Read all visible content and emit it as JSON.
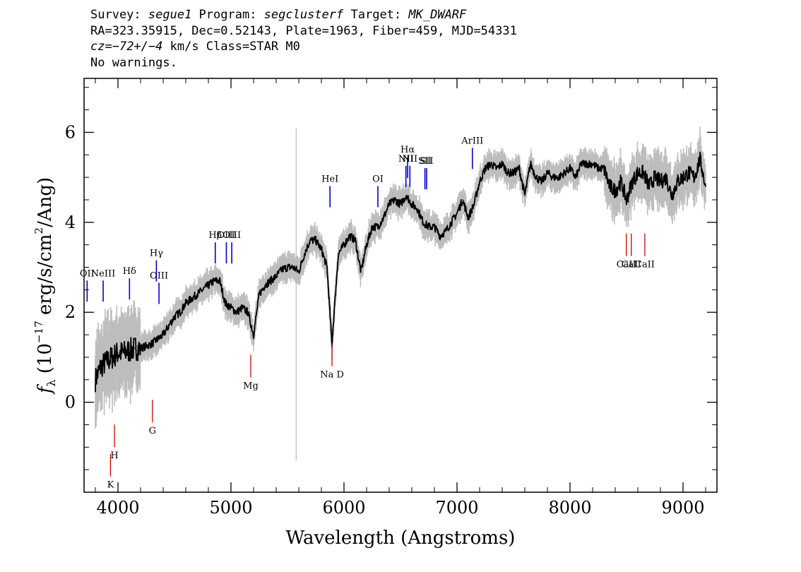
{
  "header": {
    "line1": {
      "survey_label": "Survey: ",
      "survey": "segue1",
      "program_label": " Program: ",
      "program": "segclusterf",
      "target_label": " Target: ",
      "target": "MK_DWARF"
    },
    "line2": "RA=323.35915, Dec=0.52143, Plate=1963, Fiber=459, MJD=54331",
    "line3": {
      "cz_label": "cz",
      "cz_value": "=−72+/−4",
      "cz_rest": " km/s Class=STAR M0"
    },
    "line4": "No warnings."
  },
  "chart_data": {
    "type": "line",
    "xlabel": "Wavelength (Angstroms)",
    "ylabel": "f_λ (10^-17 erg/s/cm^2/Ang)",
    "xlim": [
      3700,
      9300
    ],
    "ylim": [
      -2.0,
      7.2
    ],
    "x_ticks": [
      4000,
      5000,
      6000,
      7000,
      8000,
      9000
    ],
    "y_ticks": [
      0,
      2,
      4,
      6
    ],
    "colors": {
      "flux": "#000000",
      "error_band": "#bdbdbd",
      "emission_lines": "#0000cc",
      "absorption_lines": "#cc0000"
    },
    "series": [
      {
        "x": [
          3800,
          3850,
          3900,
          3950,
          4000,
          4050,
          4100,
          4150,
          4200,
          4250,
          4300,
          4350,
          4400,
          4450,
          4500,
          4550,
          4600,
          4650,
          4700,
          4750,
          4800,
          4850,
          4900,
          4950,
          5000,
          5050,
          5100,
          5150,
          5200,
          5250,
          5300,
          5350,
          5400,
          5450,
          5500,
          5550,
          5600,
          5650,
          5700,
          5750,
          5800,
          5850,
          5893,
          5950,
          6000,
          6050,
          6100,
          6150,
          6200,
          6250,
          6300,
          6350,
          6400,
          6450,
          6500,
          6550,
          6600,
          6650,
          6700,
          6750,
          6800,
          6850,
          6900,
          6950,
          7000,
          7050,
          7100,
          7150,
          7200,
          7250,
          7300,
          7350,
          7400,
          7450,
          7500,
          7550,
          7600,
          7650,
          7700,
          7750,
          7800,
          7850,
          7900,
          7950,
          8000,
          8050,
          8100,
          8150,
          8200,
          8250,
          8300,
          8350,
          8400,
          8450,
          8500,
          8550,
          8600,
          8650,
          8700,
          8750,
          8800,
          8850,
          8900,
          8950,
          9000,
          9050,
          9100,
          9150,
          9200
        ],
        "y": [
          0.5,
          0.8,
          0.9,
          1.0,
          1.1,
          1.1,
          1.15,
          1.2,
          1.2,
          1.25,
          1.3,
          1.4,
          1.5,
          1.7,
          1.9,
          2.0,
          2.2,
          2.3,
          2.4,
          2.5,
          2.6,
          2.7,
          2.7,
          2.2,
          2.1,
          2.0,
          2.1,
          2.0,
          1.5,
          2.4,
          2.6,
          2.7,
          2.8,
          2.95,
          3.0,
          3.0,
          2.9,
          3.3,
          3.6,
          3.6,
          3.4,
          3.0,
          1.3,
          3.3,
          3.5,
          3.7,
          3.6,
          2.9,
          3.5,
          3.9,
          3.9,
          4.1,
          4.4,
          4.5,
          4.4,
          4.6,
          4.4,
          4.3,
          4.0,
          3.9,
          3.9,
          3.7,
          3.8,
          4.0,
          4.2,
          4.5,
          4.1,
          4.4,
          4.9,
          5.2,
          5.3,
          5.2,
          5.3,
          5.1,
          5.1,
          5.2,
          4.6,
          5.3,
          5.0,
          4.9,
          5.1,
          5.0,
          5.0,
          5.1,
          5.2,
          5.0,
          5.3,
          5.3,
          5.3,
          5.2,
          5.2,
          4.8,
          4.7,
          4.9,
          4.5,
          4.9,
          5.1,
          5.1,
          4.8,
          5.0,
          4.9,
          5.0,
          4.6,
          4.9,
          5.0,
          5.1,
          5.0,
          5.4,
          4.8
        ]
      }
    ],
    "lines": [
      {
        "label": "OII",
        "wavelength": 3727,
        "type": "emission",
        "label_y": 2.8
      },
      {
        "label": "NeIII",
        "wavelength": 3869,
        "type": "emission",
        "label_y": 2.8
      },
      {
        "label": "Hδ",
        "wavelength": 4102,
        "type": "emission",
        "label_y": 2.85
      },
      {
        "label": "Hγ",
        "wavelength": 4340,
        "type": "emission",
        "label_y": 3.25
      },
      {
        "label": "OIII",
        "wavelength": 4363,
        "type": "emission",
        "label_y": 2.75
      },
      {
        "label": "Hβ",
        "wavelength": 4861,
        "type": "emission",
        "label_y": 3.65
      },
      {
        "label": "OIII",
        "wavelength": 4959,
        "type": "emission",
        "label_y": 3.65
      },
      {
        "label": "OIII",
        "wavelength": 5007,
        "type": "emission",
        "label_y": 3.65
      },
      {
        "label": "HeI",
        "wavelength": 5876,
        "type": "emission",
        "label_y": 4.9
      },
      {
        "label": "OI",
        "wavelength": 6300,
        "type": "emission",
        "label_y": 4.9
      },
      {
        "label": "NII",
        "wavelength": 6548,
        "type": "emission",
        "label_y": 5.35
      },
      {
        "label": "Hα",
        "wavelength": 6563,
        "type": "emission",
        "label_y": 5.55
      },
      {
        "label": "NII",
        "wavelength": 6583,
        "type": "emission",
        "label_y": 5.35
      },
      {
        "label": "SII",
        "wavelength": 6716,
        "type": "emission",
        "label_y": 5.3
      },
      {
        "label": "SII",
        "wavelength": 6731,
        "type": "emission",
        "label_y": 5.3
      },
      {
        "label": "ArIII",
        "wavelength": 7136,
        "type": "emission",
        "label_y": 5.75
      },
      {
        "label": "K",
        "wavelength": 3934,
        "type": "absorption",
        "label_y": -1.9
      },
      {
        "label": "H",
        "wavelength": 3969,
        "type": "absorption",
        "label_y": -1.25
      },
      {
        "label": "G",
        "wavelength": 4305,
        "type": "absorption",
        "label_y": -0.7
      },
      {
        "label": "Mg",
        "wavelength": 5175,
        "type": "absorption",
        "label_y": 0.3
      },
      {
        "label": "Na D",
        "wavelength": 5894,
        "type": "absorption",
        "label_y": 0.55
      },
      {
        "label": "CaII",
        "wavelength": 8498,
        "type": "absorption",
        "label_y": 3.0
      },
      {
        "label": "CaII",
        "wavelength": 8542,
        "type": "absorption",
        "label_y": 3.0
      },
      {
        "label": "CaII",
        "wavelength": 8662,
        "type": "absorption",
        "label_y": 3.0
      }
    ]
  }
}
